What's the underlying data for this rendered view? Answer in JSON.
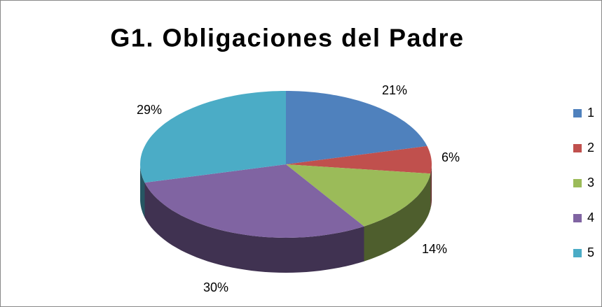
{
  "chart_data": {
    "type": "pie",
    "title": "G1. Obligaciones del Padre",
    "categories": [
      "1",
      "2",
      "3",
      "4",
      "5"
    ],
    "values": [
      21,
      6,
      14,
      30,
      29
    ],
    "value_labels": [
      "21%",
      "6%",
      "14%",
      "30%",
      "29%"
    ],
    "colors": [
      "#4f81bd",
      "#c0504d",
      "#9bbb59",
      "#8064a2",
      "#4bacc6"
    ],
    "legend": "right"
  }
}
